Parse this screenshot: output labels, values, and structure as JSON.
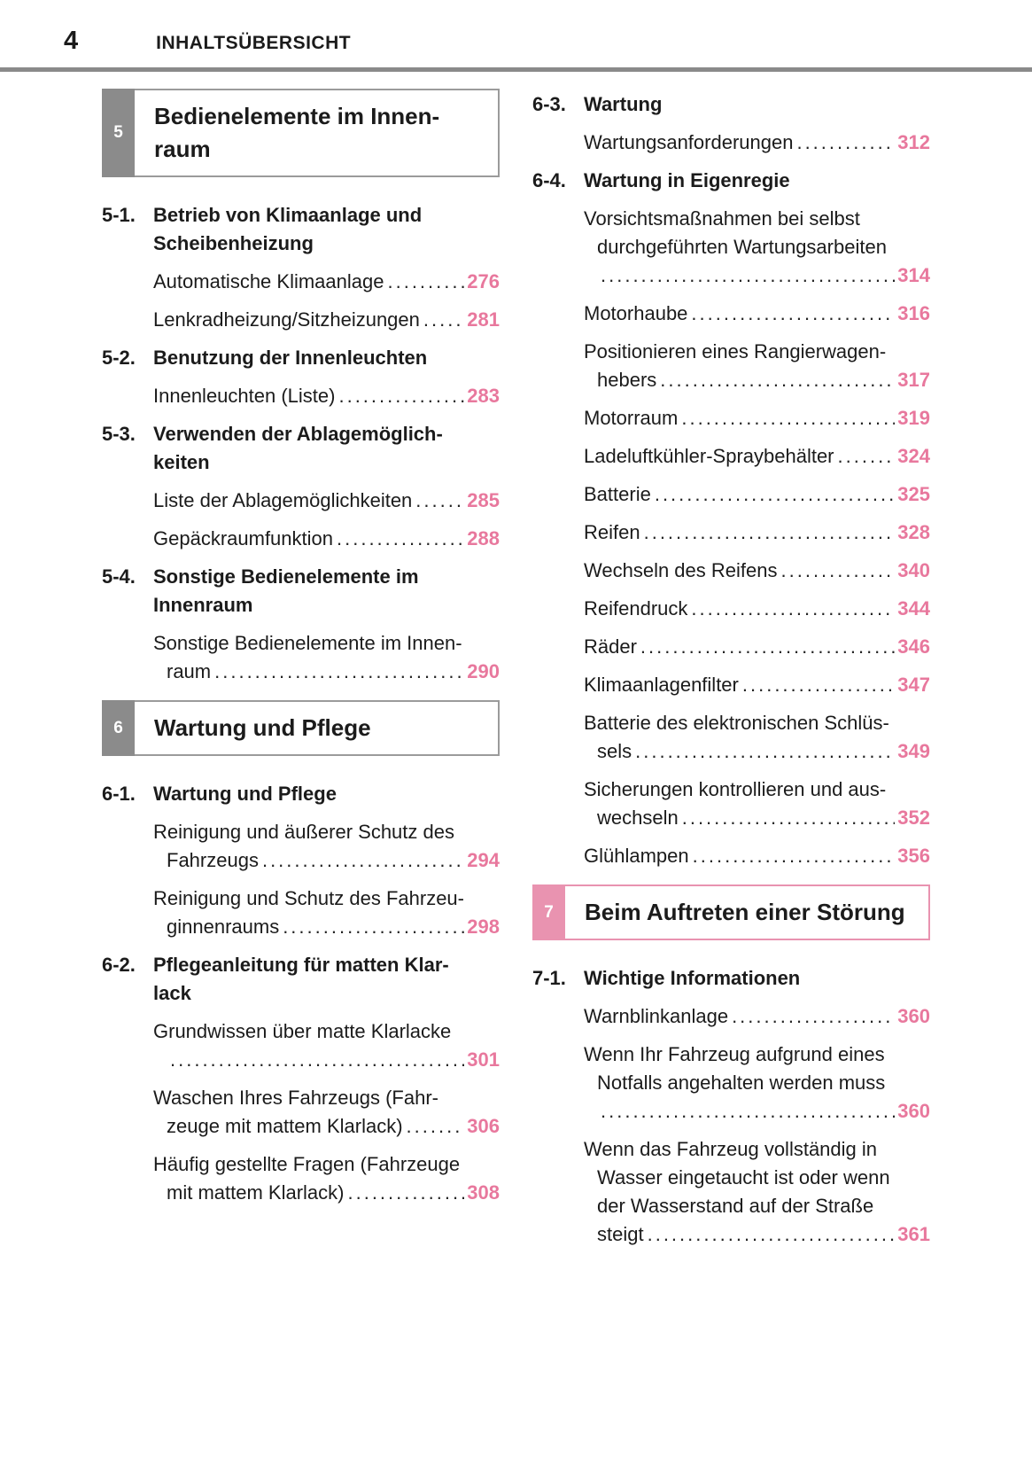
{
  "header": {
    "page_number": "4",
    "title": "INHALTSÜBERSICHT"
  },
  "colors": {
    "accent_pink": "#e8789d",
    "tab_pink": "#e993b0",
    "tab_gray": "#8b8b8b",
    "border_gray": "#9b9b9b",
    "rule_gray": "#8a8a8a",
    "text": "#1b1b1b"
  },
  "columns": [
    {
      "side": "left",
      "blocks": [
        {
          "type": "section_box",
          "number": "5",
          "theme": "gray",
          "title_lines": [
            "Bedienelemente im Innen-",
            "raum"
          ]
        },
        {
          "type": "heading",
          "number": "5-1.",
          "lines": [
            "Betrieb von Klimaanlage und",
            "Scheibenheizung"
          ]
        },
        {
          "type": "entry",
          "lines": [
            "Automatische Klimaanlage"
          ],
          "page": "276"
        },
        {
          "type": "entry",
          "lines": [
            "Lenkradheizung/Sitzheizungen"
          ],
          "page": "281"
        },
        {
          "type": "heading",
          "number": "5-2.",
          "lines": [
            "Benutzung der Innenleuchten"
          ]
        },
        {
          "type": "entry",
          "lines": [
            "Innenleuchten (Liste)"
          ],
          "page": "283"
        },
        {
          "type": "heading",
          "number": "5-3.",
          "lines": [
            "Verwenden der Ablagemöglich-",
            "keiten"
          ]
        },
        {
          "type": "entry",
          "lines": [
            "Liste der Ablagemöglichkeiten"
          ],
          "page": "285"
        },
        {
          "type": "entry",
          "lines": [
            "Gepäckraumfunktion"
          ],
          "page": "288"
        },
        {
          "type": "heading",
          "number": "5-4.",
          "lines": [
            "Sonstige Bedienelemente im",
            "Innenraum"
          ]
        },
        {
          "type": "entry",
          "lines": [
            "Sonstige Bedienelemente im Innen-",
            "raum"
          ],
          "page": "290"
        },
        {
          "type": "section_box",
          "number": "6",
          "theme": "gray",
          "title_lines": [
            "Wartung und Pflege"
          ]
        },
        {
          "type": "heading",
          "number": "6-1.",
          "lines": [
            "Wartung und Pflege"
          ]
        },
        {
          "type": "entry",
          "lines": [
            "Reinigung und äußerer Schutz des",
            "Fahrzeugs"
          ],
          "page": "294"
        },
        {
          "type": "entry",
          "lines": [
            "Reinigung und Schutz des Fahrzeu-",
            "ginnenraums"
          ],
          "page": "298"
        },
        {
          "type": "heading",
          "number": "6-2.",
          "lines": [
            "Pflegeanleitung für matten Klar-",
            "lack"
          ]
        },
        {
          "type": "entry",
          "lines": [
            "Grundwissen über matte Klarlacke",
            ""
          ],
          "page": "301"
        },
        {
          "type": "entry",
          "lines": [
            "Waschen Ihres Fahrzeugs (Fahr-",
            "zeuge mit mattem Klarlack)"
          ],
          "page": "306"
        },
        {
          "type": "entry",
          "lines": [
            "Häufig gestellte Fragen (Fahrzeuge",
            "mit mattem Klarlack)"
          ],
          "page": "308"
        }
      ]
    },
    {
      "side": "right",
      "blocks": [
        {
          "type": "heading",
          "number": "6-3.",
          "lines": [
            "Wartung"
          ]
        },
        {
          "type": "entry",
          "lines": [
            "Wartungsanforderungen"
          ],
          "page": "312"
        },
        {
          "type": "heading",
          "number": "6-4.",
          "lines": [
            "Wartung in Eigenregie"
          ]
        },
        {
          "type": "entry",
          "lines": [
            "Vorsichtsmaßnahmen bei selbst",
            "durchgeführten Wartungsarbeiten",
            ""
          ],
          "page": "314"
        },
        {
          "type": "entry",
          "lines": [
            "Motorhaube"
          ],
          "page": "316"
        },
        {
          "type": "entry",
          "lines": [
            "Positionieren eines Rangierwagen-",
            "hebers"
          ],
          "page": "317"
        },
        {
          "type": "entry",
          "lines": [
            "Motorraum"
          ],
          "page": "319"
        },
        {
          "type": "entry",
          "lines": [
            "Ladeluftkühler-Spraybehälter"
          ],
          "page": "324"
        },
        {
          "type": "entry",
          "lines": [
            "Batterie"
          ],
          "page": "325"
        },
        {
          "type": "entry",
          "lines": [
            "Reifen"
          ],
          "page": "328"
        },
        {
          "type": "entry",
          "lines": [
            "Wechseln des Reifens"
          ],
          "page": "340"
        },
        {
          "type": "entry",
          "lines": [
            "Reifendruck"
          ],
          "page": "344"
        },
        {
          "type": "entry",
          "lines": [
            "Räder"
          ],
          "page": "346"
        },
        {
          "type": "entry",
          "lines": [
            "Klimaanlagenfilter"
          ],
          "page": "347"
        },
        {
          "type": "entry",
          "lines": [
            "Batterie des elektronischen Schlüs-",
            "sels"
          ],
          "page": "349"
        },
        {
          "type": "entry",
          "lines": [
            "Sicherungen kontrollieren und aus-",
            "wechseln"
          ],
          "page": "352"
        },
        {
          "type": "entry",
          "lines": [
            "Glühlampen"
          ],
          "page": "356"
        },
        {
          "type": "section_box",
          "number": "7",
          "theme": "pink",
          "title_lines": [
            "Beim Auftreten einer Störung"
          ]
        },
        {
          "type": "heading",
          "number": "7-1.",
          "lines": [
            "Wichtige Informationen"
          ]
        },
        {
          "type": "entry",
          "lines": [
            "Warnblinkanlage"
          ],
          "page": "360"
        },
        {
          "type": "entry",
          "lines": [
            "Wenn Ihr Fahrzeug aufgrund eines",
            "Notfalls angehalten werden muss",
            ""
          ],
          "page": "360"
        },
        {
          "type": "entry",
          "lines": [
            "Wenn das Fahrzeug vollständig in",
            "Wasser eingetaucht ist oder wenn",
            "der Wasserstand auf der Straße",
            "steigt"
          ],
          "page": "361"
        }
      ]
    }
  ]
}
